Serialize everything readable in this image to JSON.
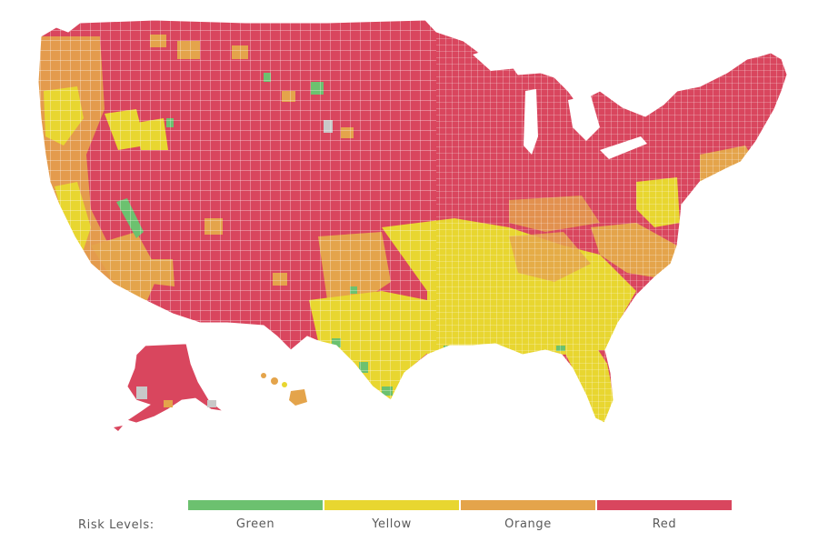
{
  "legend": {
    "label": "Risk Levels:",
    "items": [
      {
        "name": "Green",
        "color": "#6cc16f"
      },
      {
        "name": "Yellow",
        "color": "#e8d630"
      },
      {
        "name": "Orange",
        "color": "#e4a44b"
      },
      {
        "name": "Red",
        "color": "#d9465e"
      }
    ]
  },
  "map": {
    "border_color": "#ffffff",
    "no_data_color": "#c8c8c8",
    "regions": [
      "Alaska",
      "Hawaii",
      "Pacific Northwest",
      "California",
      "Great Basin",
      "Rocky Mountains",
      "Southwest",
      "Great Plains",
      "Texas",
      "Midwest",
      "Great Lakes",
      "Northeast",
      "Mid-Atlantic",
      "Southeast",
      "Florida"
    ]
  }
}
